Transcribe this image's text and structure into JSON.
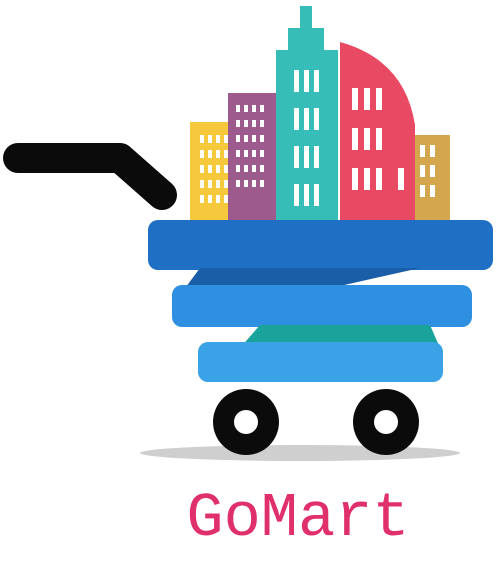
{
  "brand": {
    "name": "GoMart",
    "text_color": "#e0306b"
  },
  "palette": {
    "handle": "#0b0b0b",
    "basket_top": "#1f6fc4",
    "basket_mid": "#2f8fe0",
    "basket_bottom": "#3aa2e6",
    "basket_teal": "#1aa39a",
    "wheel": "#0b0b0b",
    "wheel_hub": "#ffffff",
    "shadow": "#cfcfcf",
    "building_yellow": "#f6c93c",
    "building_purple": "#9c5b8c",
    "building_teal": "#37bdb8",
    "building_red": "#e84a63",
    "building_tan": "#d4a64e",
    "window": "#ffffff"
  },
  "icons": {
    "logo": "shopping-cart-city-icon"
  }
}
